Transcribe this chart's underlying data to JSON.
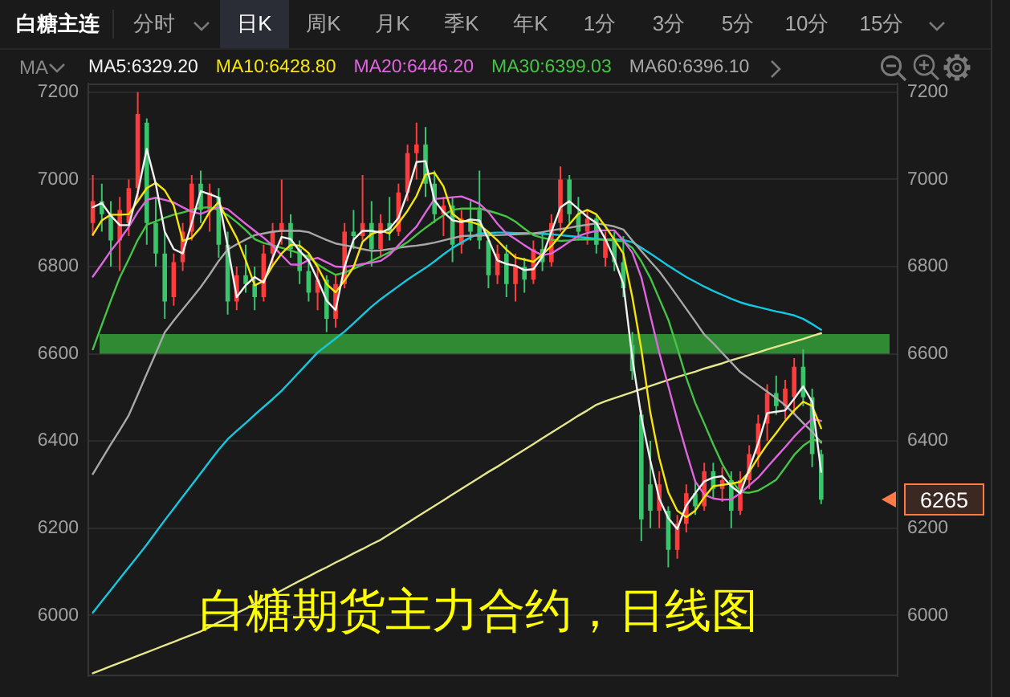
{
  "chart_data": {
    "type": "candlestick",
    "title": "白糖主连",
    "subtitle": "白糖期货主力合约，日线图",
    "legend_title": "MA",
    "annotations": [
      "6265",
      "分时",
      "日K",
      "周K",
      "月K",
      "季K",
      "年K",
      "1分",
      "3分",
      "5分",
      "10分",
      "15分"
    ],
    "categories": [
      null,
      null,
      null,
      null,
      null,
      null,
      null,
      null,
      null,
      null,
      null,
      null,
      null,
      null,
      null,
      null,
      null,
      null,
      null,
      null,
      null,
      null,
      null,
      null,
      null,
      null,
      null,
      null,
      null,
      null,
      null,
      null,
      null,
      null,
      null,
      null,
      null,
      null,
      null,
      null,
      null,
      null,
      null,
      null,
      null,
      null,
      null,
      null,
      null,
      null,
      null,
      null,
      null,
      null,
      null,
      null,
      null,
      null,
      null,
      null,
      null,
      null,
      null,
      null,
      null,
      null,
      null,
      null,
      null,
      null,
      null,
      null,
      null,
      null,
      null,
      null,
      null,
      null,
      null,
      null,
      null,
      null,
      null,
      null,
      null,
      null,
      null,
      null,
      null,
      null
    ],
    "series": [
      {
        "ohlc": [
          [
            6900,
            7010,
            6870,
            6950
          ],
          [
            6950,
            6990,
            6880,
            6920
          ],
          [
            6920,
            6950,
            6800,
            6860
          ],
          [
            6860,
            6960,
            6790,
            6930
          ],
          [
            6900,
            7000,
            6870,
            6980
          ],
          [
            6980,
            7200,
            6950,
            7150
          ],
          [
            7130,
            7140,
            6850,
            6900
          ],
          [
            6900,
            6960,
            6800,
            6830
          ],
          [
            6830,
            6880,
            6680,
            6720
          ],
          [
            6730,
            6830,
            6710,
            6810
          ],
          [
            6810,
            6900,
            6790,
            6880
          ],
          [
            6880,
            7010,
            6860,
            6990
          ],
          [
            6990,
            7020,
            6900,
            6930
          ],
          [
            6930,
            6990,
            6880,
            6970
          ],
          [
            6960,
            6980,
            6820,
            6850
          ],
          [
            6850,
            6880,
            6690,
            6720
          ],
          [
            6720,
            6800,
            6700,
            6780
          ],
          [
            6780,
            6850,
            6740,
            6760
          ],
          [
            6760,
            6800,
            6700,
            6730
          ],
          [
            6730,
            6850,
            6720,
            6830
          ],
          [
            6830,
            6900,
            6800,
            6880
          ],
          [
            6880,
            7000,
            6850,
            6900
          ],
          [
            6900,
            6920,
            6820,
            6840
          ],
          [
            6840,
            6860,
            6760,
            6790
          ],
          [
            6790,
            6830,
            6720,
            6740
          ],
          [
            6740,
            6800,
            6700,
            6770
          ],
          [
            6770,
            6780,
            6650,
            6680
          ],
          [
            6680,
            6780,
            6660,
            6760
          ],
          [
            6760,
            6900,
            6750,
            6880
          ],
          [
            6880,
            6930,
            6840,
            6870
          ],
          [
            6870,
            7010,
            6860,
            6900
          ],
          [
            6900,
            6950,
            6800,
            6840
          ],
          [
            6840,
            6920,
            6820,
            6900
          ],
          [
            6900,
            6960,
            6860,
            6880
          ],
          [
            6880,
            6990,
            6870,
            6970
          ],
          [
            6970,
            7080,
            6950,
            7060
          ],
          [
            7060,
            7130,
            7000,
            7080
          ],
          [
            7080,
            7120,
            6960,
            6990
          ],
          [
            6990,
            7020,
            6900,
            6920
          ],
          [
            6920,
            6960,
            6870,
            6940
          ],
          [
            6940,
            6960,
            6810,
            6850
          ],
          [
            6850,
            6930,
            6830,
            6910
          ],
          [
            6910,
            6950,
            6860,
            6880
          ],
          [
            6930,
            7020,
            6840,
            6860
          ],
          [
            6860,
            6880,
            6750,
            6780
          ],
          [
            6780,
            6850,
            6760,
            6830
          ],
          [
            6830,
            6850,
            6730,
            6760
          ],
          [
            6760,
            6830,
            6720,
            6800
          ],
          [
            6800,
            6820,
            6740,
            6770
          ],
          [
            6770,
            6860,
            6760,
            6840
          ],
          [
            6840,
            6880,
            6790,
            6810
          ],
          [
            6810,
            6920,
            6800,
            6900
          ],
          [
            6900,
            7030,
            6880,
            7000
          ],
          [
            7000,
            7010,
            6900,
            6920
          ],
          [
            6920,
            6960,
            6860,
            6880
          ],
          [
            6880,
            6930,
            6850,
            6910
          ],
          [
            6910,
            6920,
            6830,
            6850
          ],
          [
            6820,
            6880,
            6800,
            6860
          ],
          [
            6860,
            6880,
            6790,
            6810
          ],
          [
            6810,
            6870,
            6730,
            6750
          ],
          [
            6620,
            6650,
            6540,
            6560
          ],
          [
            6460,
            6470,
            6170,
            6220
          ],
          [
            6300,
            6400,
            6200,
            6240
          ],
          [
            6240,
            6330,
            6200,
            6300
          ],
          [
            6240,
            6250,
            6110,
            6150
          ],
          [
            6150,
            6230,
            6130,
            6210
          ],
          [
            6210,
            6300,
            6190,
            6280
          ],
          [
            6280,
            6310,
            6230,
            6250
          ],
          [
            6250,
            6350,
            6240,
            6330
          ],
          [
            6330,
            6350,
            6270,
            6290
          ],
          [
            6290,
            6340,
            6260,
            6310
          ],
          [
            6310,
            6330,
            6200,
            6240
          ],
          [
            6240,
            6330,
            6230,
            6310
          ],
          [
            6310,
            6390,
            6290,
            6370
          ],
          [
            6370,
            6460,
            6340,
            6440
          ],
          [
            6440,
            6530,
            6400,
            6510
          ],
          [
            6510,
            6550,
            6460,
            6480
          ],
          [
            6480,
            6540,
            6450,
            6520
          ],
          [
            6500,
            6590,
            6460,
            6570
          ],
          [
            6570,
            6610,
            6480,
            6500
          ],
          [
            6500,
            6520,
            6340,
            6370
          ],
          [
            6370,
            6380,
            6255,
            6265
          ],
          null,
          null,
          null,
          null,
          null,
          null,
          null,
          null
        ],
        "colors": [
          "#ff3c3c",
          "#3cc46c",
          "#3cc46c",
          "#ff3c3c",
          "#ff3c3c",
          "#ff3c3c",
          "#3cc46c",
          "#3cc46c",
          "#3cc46c",
          "#ff3c3c",
          "#ff3c3c",
          "#ff3c3c",
          "#3cc46c",
          "#ff3c3c",
          "#3cc46c",
          "#3cc46c",
          "#ff3c3c",
          "#3cc46c",
          "#3cc46c",
          "#ff3c3c",
          "#ff3c3c",
          "#ff3c3c",
          "#3cc46c",
          "#3cc46c",
          "#3cc46c",
          "#ff3c3c",
          "#3cc46c",
          "#ff3c3c",
          "#ff3c3c",
          "#3cc46c",
          "#ff3c3c",
          "#3cc46c",
          "#ff3c3c",
          "#3cc46c",
          "#ff3c3c",
          "#ff3c3c",
          "#ff3c3c",
          "#3cc46c",
          "#3cc46c",
          "#ff3c3c",
          "#3cc46c",
          "#ff3c3c",
          "#3cc46c",
          "#3cc46c",
          "#3cc46c",
          "#ff3c3c",
          "#3cc46c",
          "#ff3c3c",
          "#3cc46c",
          "#ff3c3c",
          "#3cc46c",
          "#ff3c3c",
          "#ff3c3c",
          "#3cc46c",
          "#3cc46c",
          "#ff3c3c",
          "#3cc46c",
          "#ff3c3c",
          "#3cc46c",
          "#3cc46c",
          "#3cc46c",
          "#3cc46c",
          "#3cc46c",
          "#ff3c3c",
          "#3cc46c",
          "#ff3c3c",
          "#ff3c3c",
          "#3cc46c",
          "#ff3c3c",
          "#3cc46c",
          "#ff3c3c",
          "#3cc46c",
          "#ff3c3c",
          "#ff3c3c",
          "#ff3c3c",
          "#ff3c3c",
          "#3cc46c",
          "#ff3c3c",
          "#ff3c3c",
          "#3cc46c",
          "#3cc46c",
          "#3cc46c",
          null,
          null,
          null,
          null,
          null,
          null,
          null,
          null
        ]
      },
      {
        "type": "line",
        "name": "MA5:6329.20",
        "color": "#f2f2f2",
        "values": [
          6936,
          6946,
          6917,
          6895,
          6895,
          6970,
          7070,
          6990,
          6880,
          6840,
          6830,
          6900,
          6973,
          6966,
          6958,
          6846,
          6730,
          6757,
          6776,
          6763,
          6820,
          6868,
          6863,
          6836,
          6814,
          6770,
          6722,
          6700,
          6800,
          6862,
          6882,
          6882,
          6878,
          6887,
          6912,
          6970,
          7040,
          7042,
          6952,
          6925,
          6906,
          6902,
          6908,
          6906,
          6862,
          6814,
          6806,
          6802,
          6792,
          6794,
          6823,
          6880,
          6936,
          6950,
          6932,
          6914,
          6900,
          6863,
          6817,
          6760,
          6590,
          6455,
          6355,
          6267,
          6223,
          6198,
          6252,
          6280,
          6307,
          6316,
          6319,
          6296,
          6280,
          6336,
          6395,
          6464,
          6467,
          6470,
          6497,
          6525,
          6490,
          6329,
          null,
          null,
          null,
          null,
          null,
          null,
          null,
          null
        ]
      },
      {
        "type": "line",
        "name": "MA10:6428.80",
        "color": "#f5e50a",
        "values": [
          6873,
          6906,
          6919,
          6919,
          6920,
          6950,
          6980,
          6992,
          6975,
          6940,
          6859,
          6866,
          6890,
          6926,
          6948,
          6905,
          6866,
          6815,
          6757,
          6767,
          6802,
          6830,
          6850,
          6848,
          6831,
          6799,
          6760,
          6741,
          6768,
          6799,
          6857,
          6875,
          6882,
          6876,
          6900,
          6928,
          6962,
          7011,
          7015,
          6984,
          6921,
          6905,
          6903,
          6896,
          6879,
          6860,
          6839,
          6821,
          6816,
          6811,
          6828,
          6847,
          6872,
          6897,
          6921,
          6930,
          6920,
          6892,
          6862,
          6830,
          6730,
          6610,
          6465,
          6360,
          6282,
          6240,
          6225,
          6240,
          6271,
          6296,
          6299,
          6302,
          6306,
          6329,
          6362,
          6392,
          6418,
          6446,
          6470,
          6490,
          6480,
          6429,
          null,
          null,
          null,
          null,
          null,
          null,
          null,
          null
        ]
      },
      {
        "type": "line",
        "name": "MA20:6446.20",
        "color": "#e065e0",
        "values": [
          6777,
          6806,
          6836,
          6862,
          6891,
          6925,
          6953,
          6958,
          6953,
          6947,
          6936,
          6926,
          6921,
          6929,
          6937,
          6932,
          6915,
          6898,
          6882,
          6866,
          6848,
          6826,
          6805,
          6804,
          6815,
          6820,
          6810,
          6800,
          6799,
          6802,
          6806,
          6809,
          6813,
          6827,
          6849,
          6871,
          6892,
          6924,
          6955,
          6957,
          6959,
          6961,
          6953,
          6944,
          6925,
          6898,
          6876,
          6863,
          6849,
          6836,
          6826,
          6830,
          6843,
          6857,
          6870,
          6877,
          6882,
          6883,
          6883,
          6860,
          6832,
          6775,
          6688,
          6602,
          6526,
          6448,
          6375,
          6307,
          6277,
          6268,
          6265,
          6266,
          6280,
          6298,
          6316,
          6340,
          6363,
          6386,
          6410,
          6431,
          6451,
          6446,
          null,
          null,
          null,
          null,
          null,
          null,
          null,
          null
        ]
      },
      {
        "type": "line",
        "name": "MA30:6399.03",
        "color": "#46c446",
        "values": [
          6610,
          6666,
          6722,
          6775,
          6817,
          6861,
          6896,
          6904,
          6912,
          6919,
          6924,
          6930,
          6935,
          6936,
          6930,
          6918,
          6902,
          6884,
          6863,
          6854,
          6849,
          6843,
          6837,
          6830,
          6823,
          6805,
          6792,
          6781,
          6786,
          6795,
          6804,
          6813,
          6823,
          6833,
          6843,
          6856,
          6873,
          6889,
          6904,
          6918,
          6930,
          6933,
          6933,
          6933,
          6928,
          6922,
          6915,
          6903,
          6887,
          6872,
          6866,
          6862,
          6859,
          6860,
          6862,
          6862,
          6862,
          6861,
          6860,
          6858,
          6843,
          6812,
          6774,
          6726,
          6678,
          6613,
          6545,
          6487,
          6440,
          6392,
          6347,
          6311,
          6283,
          6281,
          6286,
          6298,
          6311,
          6339,
          6368,
          6389,
          6403,
          6399,
          null,
          null,
          null,
          null,
          null,
          null,
          null,
          null
        ]
      },
      {
        "type": "line",
        "name": "MA60:6396.10",
        "color": "#a8a8a8",
        "values": [
          6324,
          6358,
          6392,
          6425,
          6459,
          6506,
          6554,
          6601,
          6649,
          6676,
          6702,
          6727,
          6753,
          6782,
          6813,
          6839,
          6851,
          6862,
          6872,
          6876,
          6880,
          6882,
          6882,
          6882,
          6879,
          6870,
          6861,
          6853,
          6849,
          6845,
          6840,
          6836,
          6837,
          6840,
          6843,
          6846,
          6848,
          6851,
          6855,
          6860,
          6865,
          6870,
          6871,
          6871,
          6872,
          6872,
          6873,
          6874,
          6875,
          6876,
          6879,
          6883,
          6886,
          6889,
          6893,
          6896,
          6899,
          6896,
          6892,
          6885,
          6860,
          6836,
          6812,
          6789,
          6761,
          6732,
          6703,
          6674,
          6644,
          6624,
          6602,
          6580,
          6558,
          6543,
          6528,
          6513,
          6498,
          6482,
          6462,
          6441,
          6421,
          6396,
          null,
          null,
          null,
          null,
          null,
          null,
          null,
          null
        ]
      },
      {
        "type": "line",
        "color": "#14c8e0",
        "values": [
          6006,
          6032,
          6058,
          6084,
          6110,
          6136,
          6162,
          6190,
          6218,
          6245,
          6272,
          6299,
          6326,
          6353,
          6380,
          6404,
          6423,
          6441,
          6460,
          6478,
          6496,
          6515,
          6537,
          6559,
          6581,
          6603,
          6619,
          6635,
          6651,
          6670,
          6689,
          6708,
          6725,
          6740,
          6755,
          6770,
          6784,
          6797,
          6812,
          6828,
          6843,
          6855,
          6867,
          6876,
          6877,
          6878,
          6878,
          6877,
          6877,
          6876,
          6875,
          6874,
          6872,
          6870,
          6868,
          6866,
          6864,
          6862,
          6863,
          6861,
          6856,
          6843,
          6830,
          6816,
          6802,
          6789,
          6776,
          6765,
          6754,
          6744,
          6735,
          6726,
          6718,
          6712,
          6707,
          6702,
          6697,
          6693,
          6688,
          6680,
          6668,
          6655,
          null,
          null,
          null,
          null,
          null,
          null,
          null,
          null
        ]
      },
      {
        "type": "line",
        "color": "#e6e68c",
        "values": [
          5867,
          5875,
          5883,
          5891,
          5899,
          5907,
          5915,
          5923,
          5931,
          5939,
          5947,
          5955,
          5963,
          5973,
          5984,
          5994,
          6005,
          6015,
          6026,
          6036,
          6047,
          6057,
          6068,
          6079,
          6089,
          6100,
          6110,
          6121,
          6131,
          6142,
          6152,
          6163,
          6173,
          6186,
          6199,
          6212,
          6225,
          6238,
          6251,
          6264,
          6277,
          6290,
          6303,
          6316,
          6329,
          6341,
          6354,
          6367,
          6380,
          6393,
          6406,
          6419,
          6432,
          6445,
          6458,
          6470,
          6483,
          6491,
          6498,
          6505,
          6512,
          6519,
          6526,
          6533,
          6540,
          6547,
          6553,
          6559,
          6566,
          6572,
          6578,
          6585,
          6591,
          6597,
          6603,
          6610,
          6616,
          6622,
          6628,
          6634,
          6641,
          6647,
          null,
          null,
          null,
          null,
          null,
          null,
          null,
          null
        ]
      }
    ],
    "ylim": [
      5860,
      7220
    ],
    "yticks": [
      6000,
      6200,
      6400,
      6600,
      6800,
      7000,
      7200
    ],
    "y2lim": [
      5860,
      7220
    ],
    "y2ticks": [
      6000,
      6200,
      6400,
      6600,
      6800,
      7000,
      7200
    ],
    "bands": [
      {
        "axis": "y",
        "from": 6600,
        "to": 6645,
        "color": "#2f8a33"
      }
    ],
    "grid": "y",
    "legend": "top left"
  }
}
